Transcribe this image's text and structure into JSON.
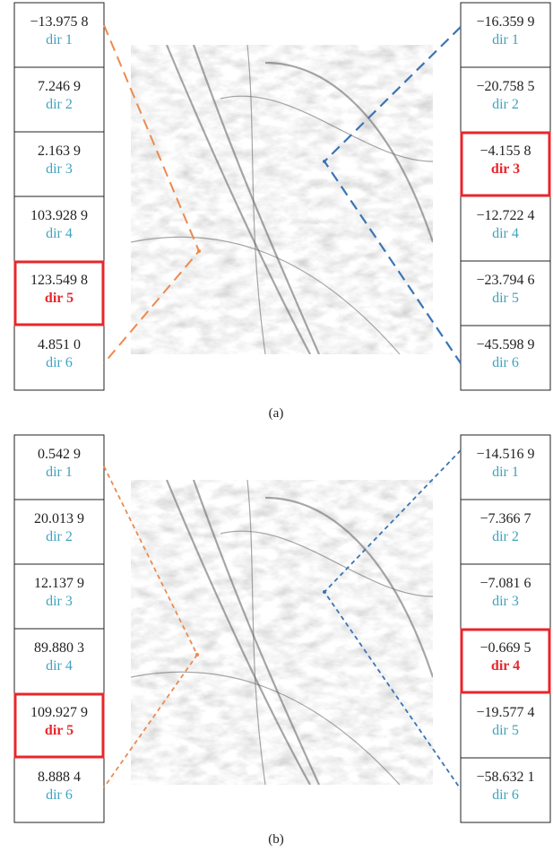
{
  "panels": [
    {
      "caption": "(a)",
      "left": [
        {
          "value": "−13.975 8",
          "dir": "dir 1"
        },
        {
          "value": "7.246 9",
          "dir": "dir 2"
        },
        {
          "value": "2.163 9",
          "dir": "dir 3"
        },
        {
          "value": "103.928 9",
          "dir": "dir 4"
        },
        {
          "value": "123.549 8",
          "dir": "dir 5",
          "highlight": true
        },
        {
          "value": "4.851 0",
          "dir": "dir 6"
        }
      ],
      "right": [
        {
          "value": "−16.359 9",
          "dir": "dir 1"
        },
        {
          "value": "−20.758 5",
          "dir": "dir 2"
        },
        {
          "value": "−4.155 8",
          "dir": "dir 3",
          "highlight": true
        },
        {
          "value": "−12.722 4",
          "dir": "dir 4"
        },
        {
          "value": "−23.794 6",
          "dir": "dir 5"
        },
        {
          "value": "−45.598 9",
          "dir": "dir 6"
        }
      ]
    },
    {
      "caption": "(b)",
      "left": [
        {
          "value": "0.542 9",
          "dir": "dir 1"
        },
        {
          "value": "20.013 9",
          "dir": "dir 2"
        },
        {
          "value": "12.137 9",
          "dir": "dir 3"
        },
        {
          "value": "89.880 3",
          "dir": "dir 4"
        },
        {
          "value": "109.927 9",
          "dir": "dir 5",
          "highlight": true
        },
        {
          "value": "8.888 4",
          "dir": "dir 6"
        }
      ],
      "right": [
        {
          "value": "−14.516 9",
          "dir": "dir 1"
        },
        {
          "value": "−7.366 7",
          "dir": "dir 2"
        },
        {
          "value": "−7.081 6",
          "dir": "dir 3"
        },
        {
          "value": "−0.669 5",
          "dir": "dir 4",
          "highlight": true
        },
        {
          "value": "−19.577 4",
          "dir": "dir 5"
        },
        {
          "value": "−58.632 1",
          "dir": "dir 6"
        }
      ]
    }
  ]
}
